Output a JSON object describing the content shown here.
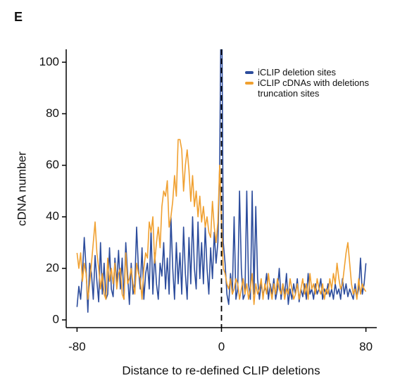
{
  "chart_data": {
    "type": "line",
    "panel_label": "E",
    "xlabel": "Distance to re-defined CLIP deletions",
    "ylabel": "cDNA number",
    "xlim": [
      -86,
      86
    ],
    "ylim": [
      -3,
      105
    ],
    "xticks": [
      -80,
      0,
      80
    ],
    "yticks": [
      0,
      20,
      40,
      60,
      80,
      100
    ],
    "vline": 0,
    "legend": "upper right",
    "x": [
      -80,
      -79,
      -78,
      -77,
      -76,
      -75,
      -74,
      -73,
      -72,
      -71,
      -70,
      -69,
      -68,
      -67,
      -66,
      -65,
      -64,
      -63,
      -62,
      -61,
      -60,
      -59,
      -58,
      -57,
      -56,
      -55,
      -54,
      -53,
      -52,
      -51,
      -50,
      -49,
      -48,
      -47,
      -46,
      -45,
      -44,
      -43,
      -42,
      -41,
      -40,
      -39,
      -38,
      -37,
      -36,
      -35,
      -34,
      -33,
      -32,
      -31,
      -30,
      -29,
      -28,
      -27,
      -26,
      -25,
      -24,
      -23,
      -22,
      -21,
      -20,
      -19,
      -18,
      -17,
      -16,
      -15,
      -14,
      -13,
      -12,
      -11,
      -10,
      -9,
      -8,
      -7,
      -6,
      -5,
      -4,
      -3,
      -2,
      -1,
      0,
      1,
      2,
      3,
      4,
      5,
      6,
      7,
      8,
      9,
      10,
      11,
      12,
      13,
      14,
      15,
      16,
      17,
      18,
      19,
      20,
      21,
      22,
      23,
      24,
      25,
      26,
      27,
      28,
      29,
      30,
      31,
      32,
      33,
      34,
      35,
      36,
      37,
      38,
      39,
      40,
      41,
      42,
      43,
      44,
      45,
      46,
      47,
      48,
      49,
      50,
      51,
      52,
      53,
      54,
      55,
      56,
      57,
      58,
      59,
      60,
      61,
      62,
      63,
      64,
      65,
      66,
      67,
      68,
      69,
      70,
      71,
      72,
      73,
      74,
      75,
      76,
      77,
      78,
      79,
      80
    ],
    "series": [
      {
        "name": "iCLIP deletion sites",
        "color": "#2c4c9c",
        "values": [
          5,
          13,
          8,
          18,
          32,
          20,
          3,
          22,
          18,
          8,
          25,
          15,
          7,
          30,
          10,
          22,
          8,
          10,
          28,
          12,
          9,
          24,
          14,
          27,
          12,
          24,
          8,
          30,
          18,
          6,
          22,
          10,
          14,
          36,
          20,
          12,
          28,
          8,
          18,
          22,
          12,
          35,
          10,
          26,
          14,
          8,
          22,
          17,
          30,
          12,
          24,
          10,
          40,
          20,
          8,
          30,
          14,
          26,
          10,
          36,
          18,
          8,
          32,
          14,
          40,
          20,
          12,
          38,
          16,
          30,
          14,
          36,
          20,
          10,
          28,
          16,
          34,
          22,
          30,
          60,
          140,
          30,
          22,
          10,
          6,
          18,
          10,
          40,
          8,
          12,
          50,
          20,
          8,
          10,
          50,
          14,
          8,
          50,
          10,
          44,
          16,
          8,
          14,
          10,
          12,
          18,
          8,
          14,
          10,
          16,
          8,
          12,
          20,
          8,
          14,
          10,
          18,
          6,
          12,
          8,
          14,
          10,
          16,
          7,
          12,
          9,
          14,
          8,
          18,
          10,
          12,
          8,
          14,
          10,
          12,
          16,
          8,
          12,
          10,
          14,
          9,
          12,
          8,
          14,
          10,
          12,
          8,
          16,
          10,
          14,
          9,
          12,
          10,
          8,
          14,
          9,
          12,
          24,
          10,
          14,
          22
        ]
      },
      {
        "name": "iCLIP cDNAs with deletions truncation sites",
        "color": "#f0a030",
        "values": [
          26,
          20,
          26,
          15,
          22,
          18,
          8,
          14,
          22,
          30,
          38,
          26,
          20,
          12,
          18,
          10,
          8,
          24,
          15,
          20,
          14,
          22,
          12,
          18,
          20,
          10,
          8,
          26,
          14,
          16,
          20,
          14,
          10,
          22,
          18,
          16,
          8,
          20,
          26,
          24,
          38,
          34,
          40,
          22,
          30,
          36,
          28,
          44,
          50,
          48,
          54,
          36,
          40,
          46,
          56,
          48,
          70,
          70,
          66,
          50,
          60,
          66,
          58,
          46,
          56,
          44,
          50,
          40,
          48,
          38,
          44,
          36,
          40,
          34,
          32,
          46,
          36,
          30,
          38,
          60,
          38,
          20,
          18,
          14,
          12,
          16,
          10,
          12,
          16,
          14,
          8,
          12,
          16,
          10,
          14,
          8,
          12,
          18,
          6,
          14,
          10,
          12,
          16,
          8,
          14,
          10,
          18,
          12,
          8,
          14,
          10,
          16,
          12,
          10,
          14,
          8,
          12,
          10,
          16,
          12,
          8,
          10,
          14,
          8,
          12,
          16,
          10,
          14,
          8,
          18,
          12,
          14,
          10,
          16,
          12,
          10,
          14,
          8,
          12,
          10,
          16,
          12,
          18,
          14,
          22,
          16,
          12,
          14,
          20,
          26,
          30,
          22,
          14,
          10,
          12,
          8,
          16,
          10,
          14,
          12,
          11
        ]
      }
    ]
  }
}
